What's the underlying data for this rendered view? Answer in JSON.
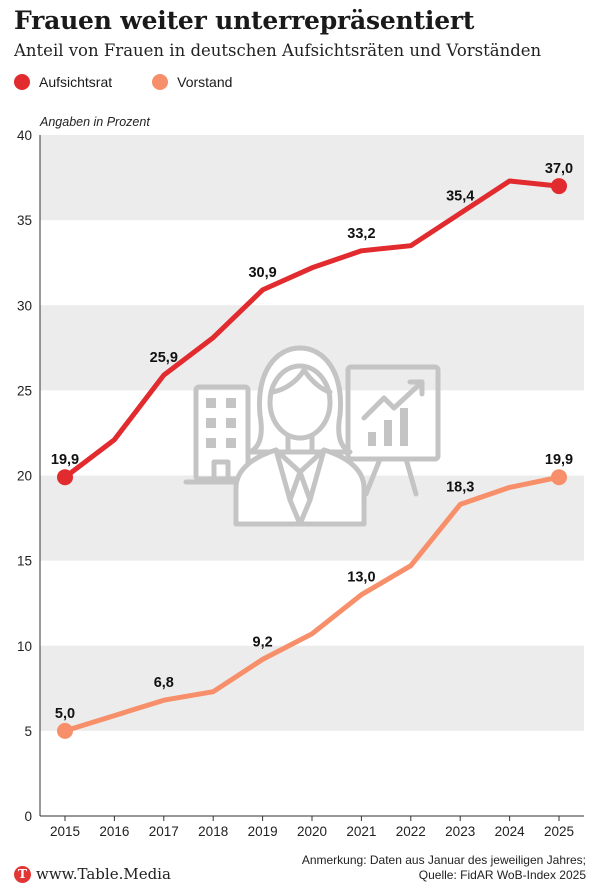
{
  "header": {
    "title": "Frauen weiter unterrepräsentiert",
    "subtitle": "Anteil von Frauen in deutschen Aufsichtsräten und Vorständen"
  },
  "legend": [
    {
      "label": "Aufsichtsrat",
      "color": "#e12b2e"
    },
    {
      "label": "Vorstand",
      "color": "#f7906a"
    }
  ],
  "unit_label": "Angaben in Prozent",
  "icon": "businesswoman-presentation-icon",
  "chart_data": {
    "type": "line",
    "title": "Frauen weiter unterrepräsentiert",
    "subtitle": "Anteil von Frauen in deutschen Aufsichtsräten und Vorständen",
    "xlabel": "",
    "ylabel": "Angaben in Prozent",
    "ylim": [
      0,
      40
    ],
    "yticks": [
      0,
      5,
      10,
      15,
      20,
      25,
      30,
      35,
      40
    ],
    "x": [
      "2015",
      "2016",
      "2017",
      "2018",
      "2019",
      "2020",
      "2021",
      "2022",
      "2023",
      "2024",
      "2025"
    ],
    "series": [
      {
        "name": "Aufsichtsrat",
        "color": "#e12b2e",
        "values": [
          19.9,
          22.1,
          25.9,
          28.1,
          30.9,
          32.2,
          33.2,
          33.5,
          35.4,
          37.3,
          37.0
        ],
        "labels": [
          "19,9",
          "",
          "25,9",
          "",
          "30,9",
          "",
          "33,2",
          "",
          "35,4",
          "",
          "37,0"
        ]
      },
      {
        "name": "Vorstand",
        "color": "#f7906a",
        "values": [
          5.0,
          5.9,
          6.8,
          7.3,
          9.2,
          10.7,
          13.0,
          14.7,
          18.3,
          19.3,
          19.9
        ],
        "labels": [
          "5,0",
          "",
          "6,8",
          "",
          "9,2",
          "",
          "13,0",
          "",
          "18,3",
          "",
          "19,9"
        ]
      }
    ]
  },
  "footer": {
    "logo_letter": "T",
    "logo_text": "www.Table.Media",
    "note_line1": "Anmerkung: Daten aus Januar des jeweiligen Jahres;",
    "note_line2": "Quelle: FidAR WoB-Index 2025"
  }
}
